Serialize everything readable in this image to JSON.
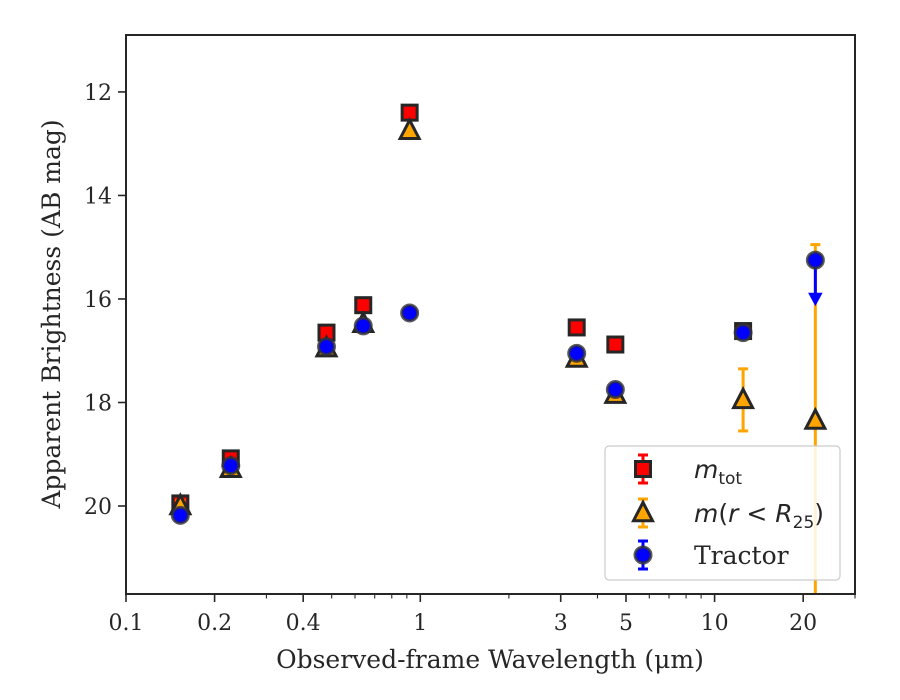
{
  "chart_data": {
    "type": "scatter",
    "title": "",
    "xlabel": "Observed-frame Wavelength (μm)",
    "ylabel": "Apparent Brightness (AB mag)",
    "x_scale": "log",
    "xlim": [
      0.1,
      30
    ],
    "ylim": [
      21.7,
      10.9
    ],
    "y_inverted": true,
    "grid": false,
    "x_ticks": [
      {
        "value": 0.1,
        "label": "0.1"
      },
      {
        "value": 0.2,
        "label": "0.2"
      },
      {
        "value": 0.4,
        "label": "0.4"
      },
      {
        "value": 1,
        "label": "1"
      },
      {
        "value": 3,
        "label": "3"
      },
      {
        "value": 5,
        "label": "5"
      },
      {
        "value": 10,
        "label": "10"
      },
      {
        "value": 20,
        "label": "20"
      }
    ],
    "y_ticks": [
      {
        "value": 12,
        "label": "12"
      },
      {
        "value": 14,
        "label": "14"
      },
      {
        "value": 16,
        "label": "16"
      },
      {
        "value": 18,
        "label": "18"
      },
      {
        "value": 20,
        "label": "20"
      }
    ],
    "legend_position": "lower-right",
    "series": [
      {
        "name": "m_tot",
        "marker": "square",
        "color": "#ff0000",
        "edge_color": "#262626",
        "errorbar_color": "#ff0000",
        "points": [
          {
            "x": 0.153,
            "y": 19.95,
            "err": 0.1
          },
          {
            "x": 0.227,
            "y": 19.08,
            "err": 0.1
          },
          {
            "x": 0.48,
            "y": 16.65,
            "err": 0.05
          },
          {
            "x": 0.64,
            "y": 16.12,
            "err": 0.05
          },
          {
            "x": 0.92,
            "y": 12.4,
            "err": 0.05
          },
          {
            "x": 3.4,
            "y": 16.55,
            "err": 0.05
          },
          {
            "x": 4.6,
            "y": 16.88,
            "err": 0.05
          },
          {
            "x": 12.5,
            "y": 16.62,
            "err": 0.1
          }
        ]
      },
      {
        "name": "m(r < R_25)",
        "marker": "triangle",
        "color": "#ffa500",
        "edge_color": "#262626",
        "errorbar_color": "#ffa500",
        "points": [
          {
            "x": 0.153,
            "y": 20.0,
            "err": 0.1
          },
          {
            "x": 0.227,
            "y": 19.28,
            "err": 0.1
          },
          {
            "x": 0.48,
            "y": 16.95,
            "err": 0.05
          },
          {
            "x": 0.64,
            "y": 16.48,
            "err": 0.05
          },
          {
            "x": 0.92,
            "y": 12.75,
            "err": 0.05
          },
          {
            "x": 3.4,
            "y": 17.15,
            "err": 0.05
          },
          {
            "x": 4.6,
            "y": 17.85,
            "err": 0.1
          },
          {
            "x": 12.5,
            "y": 17.95,
            "err": 0.6
          },
          {
            "x": 22,
            "y": 18.35,
            "err_low": 4.05,
            "err_high": 3.4
          }
        ]
      },
      {
        "name": "Tractor",
        "marker": "circle",
        "color": "#0000ff",
        "edge_color": "#333333",
        "errorbar_color": "#0000ff",
        "points": [
          {
            "x": 0.153,
            "y": 20.18,
            "err": 0.1
          },
          {
            "x": 0.227,
            "y": 19.22,
            "err": 0.1
          },
          {
            "x": 0.48,
            "y": 16.92,
            "err": 0.05
          },
          {
            "x": 0.64,
            "y": 16.52,
            "err": 0.05
          },
          {
            "x": 0.92,
            "y": 16.27,
            "err": 0.05
          },
          {
            "x": 3.4,
            "y": 17.05,
            "err": 0.05
          },
          {
            "x": 4.6,
            "y": 17.75,
            "err": 0.05
          },
          {
            "x": 12.5,
            "y": 16.65,
            "err": 0.05
          },
          {
            "x": 22,
            "y": 15.25,
            "err_high": 0.8,
            "upper_limit": true
          }
        ]
      }
    ]
  }
}
